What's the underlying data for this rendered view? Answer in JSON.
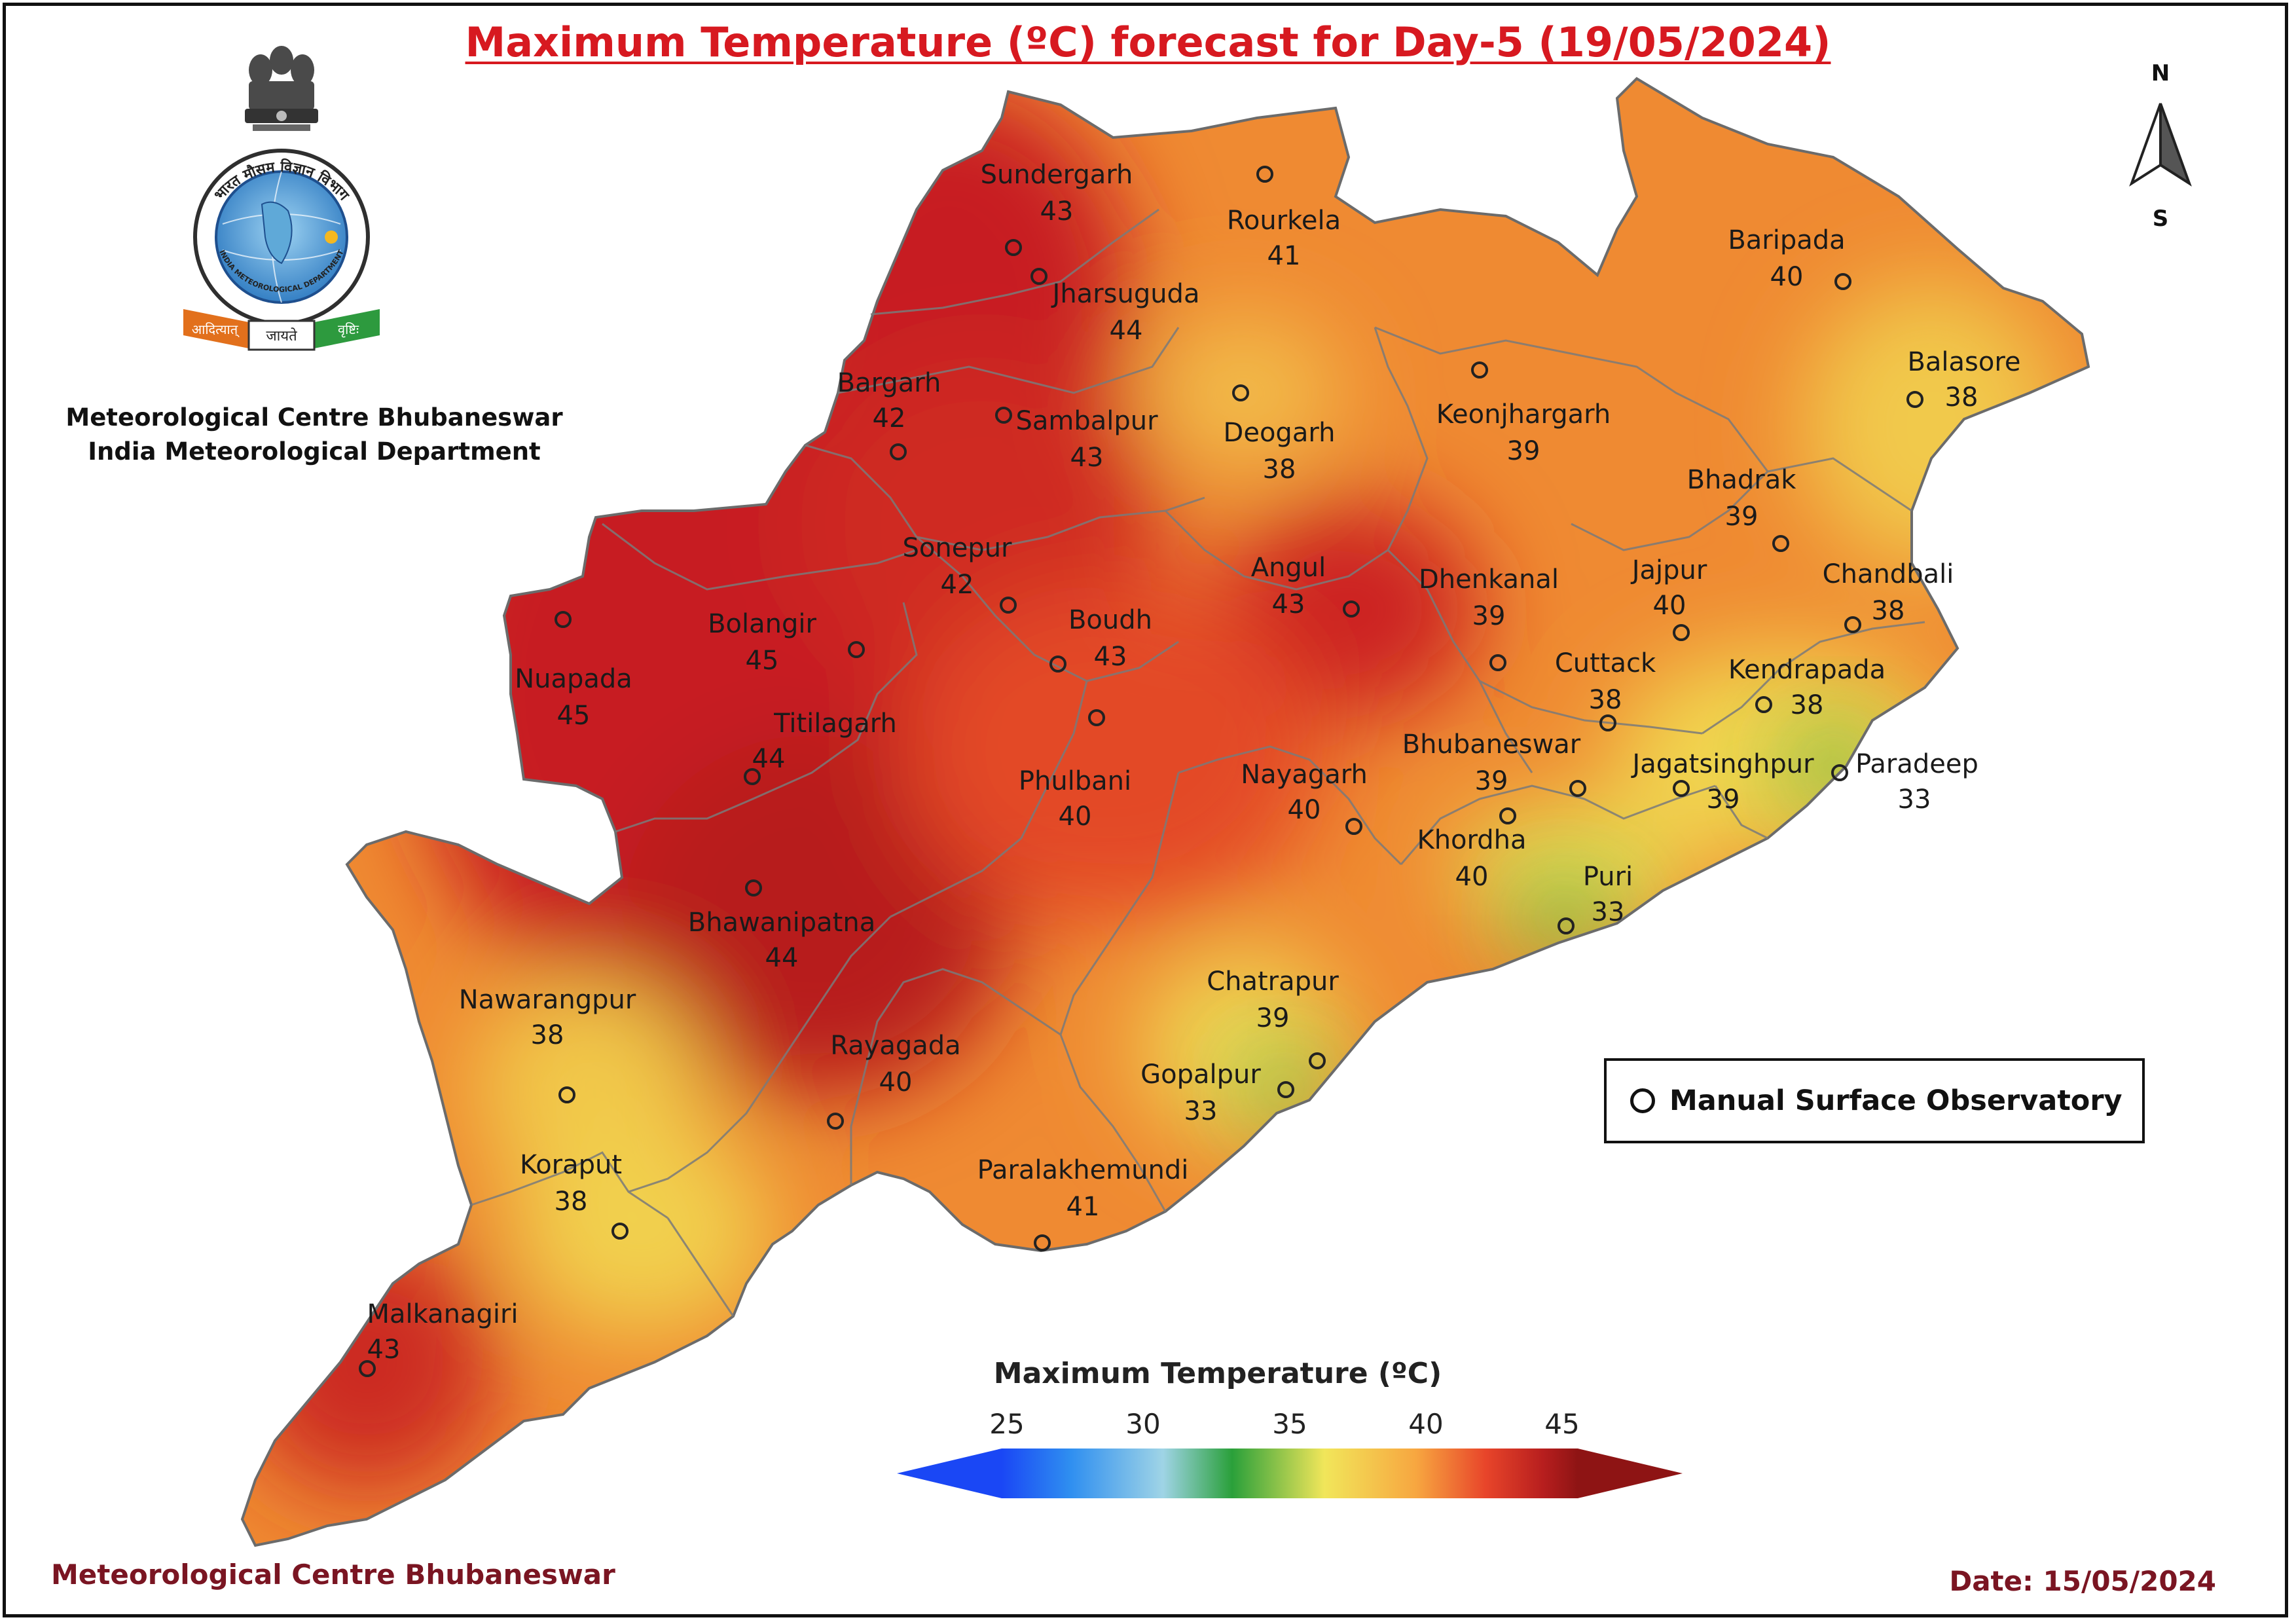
{
  "title": "Maximum Temperature (ºC) forecast for Day-5 (19/05/2024)",
  "organization": {
    "line1": "Meteorological Centre Bhubaneswar",
    "line2": "India Meteorological Department"
  },
  "footer": {
    "left": "Meteorological Centre Bhubaneswar",
    "right": "Date: 15/05/2024"
  },
  "legend": {
    "observatory_label": "Manual Surface Observatory"
  },
  "compass": {
    "north": "N",
    "south": "S"
  },
  "colorbar": {
    "title": "Maximum Temperature (ºC)",
    "ticks": [
      "25",
      "30",
      "35",
      "40",
      "45"
    ],
    "colors": [
      "#1a47f5",
      "#2f8ff0",
      "#9fd4e6",
      "#2aa03a",
      "#f1e65a",
      "#f7a640",
      "#e8452a",
      "#b71e1e",
      "#8e1414"
    ]
  },
  "logo": {
    "hindi_text": "भारत मौसम विज्ञान विभाग",
    "english_text": "INDIA METEOROLOGICAL DEPARTMENT",
    "ribbon_left": "आदित्यात्",
    "ribbon_center": "जायते",
    "ribbon_right": "वृष्टिः"
  },
  "stations": [
    {
      "name": "Sundergarh",
      "temp": "43"
    },
    {
      "name": "Rourkela",
      "temp": "41"
    },
    {
      "name": "Jharsuguda",
      "temp": "44"
    },
    {
      "name": "Baripada",
      "temp": "40"
    },
    {
      "name": "Bargarh",
      "temp": "42"
    },
    {
      "name": "Sambalpur",
      "temp": "43"
    },
    {
      "name": "Deogarh",
      "temp": "38"
    },
    {
      "name": "Keonjhargarh",
      "temp": "39"
    },
    {
      "name": "Balasore",
      "temp": "38"
    },
    {
      "name": "Bhadrak",
      "temp": "39"
    },
    {
      "name": "Sonepur",
      "temp": "42"
    },
    {
      "name": "Angul",
      "temp": "43"
    },
    {
      "name": "Dhenkanal",
      "temp": "39"
    },
    {
      "name": "Jajpur",
      "temp": "40"
    },
    {
      "name": "Chandbali",
      "temp": "38"
    },
    {
      "name": "Bolangir",
      "temp": "45"
    },
    {
      "name": "Boudh",
      "temp": "43"
    },
    {
      "name": "Nuapada",
      "temp": "45"
    },
    {
      "name": "Cuttack",
      "temp": "38"
    },
    {
      "name": "Kendrapada",
      "temp": "38"
    },
    {
      "name": "Titilagarh",
      "temp": "44"
    },
    {
      "name": "Bhubaneswar",
      "temp": "39"
    },
    {
      "name": "Jagatsinghpur",
      "temp": "39"
    },
    {
      "name": "Paradeep",
      "temp": "33"
    },
    {
      "name": "Phulbani",
      "temp": "40"
    },
    {
      "name": "Nayagarh",
      "temp": "40"
    },
    {
      "name": "Khordha",
      "temp": "40"
    },
    {
      "name": "Puri",
      "temp": "33"
    },
    {
      "name": "Bhawanipatna",
      "temp": "44"
    },
    {
      "name": "Nawarangpur",
      "temp": "38"
    },
    {
      "name": "Chatrapur",
      "temp": "39"
    },
    {
      "name": "Rayagada",
      "temp": "40"
    },
    {
      "name": "Gopalpur",
      "temp": "33"
    },
    {
      "name": "Koraput",
      "temp": "38"
    },
    {
      "name": "Paralakhemundi",
      "temp": "41"
    },
    {
      "name": "Malkanagiri",
      "temp": "43"
    }
  ]
}
